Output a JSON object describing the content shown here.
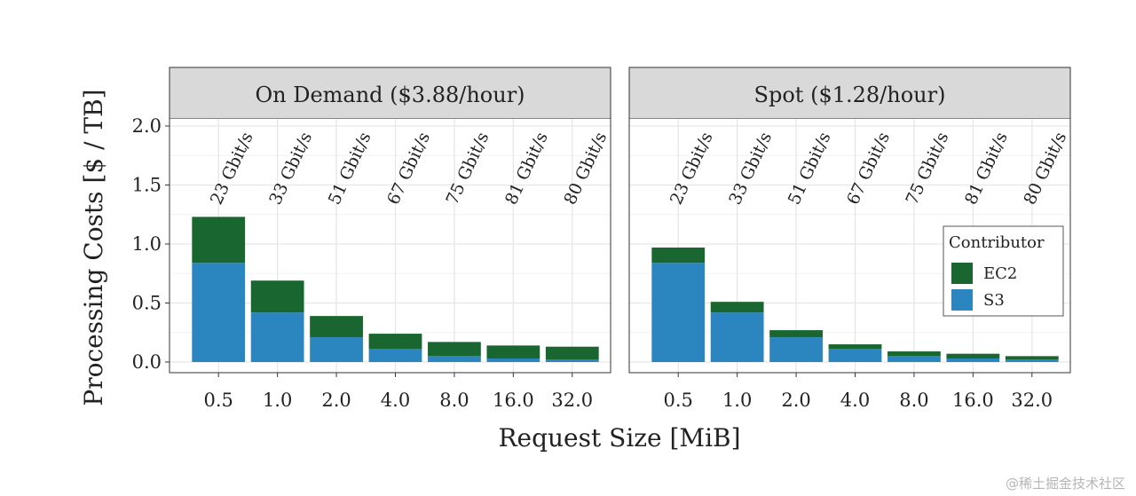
{
  "figure": {
    "xlabel": "Request Size [MiB]",
    "ylabel": "Processing Costs [$ / TB]"
  },
  "legend": {
    "title": "Contributor",
    "entries": [
      {
        "label": "EC2",
        "color": "#1a6630"
      },
      {
        "label": "S3",
        "color": "#2b86c0"
      }
    ]
  },
  "chart_data": {
    "type": "bar",
    "stacked": true,
    "categories": [
      "0.5",
      "1.0",
      "2.0",
      "4.0",
      "8.0",
      "16.0",
      "32.0"
    ],
    "ylim": [
      0,
      2.0
    ],
    "yticks": [
      "0.0",
      "0.5",
      "1.0",
      "1.5",
      "2.0"
    ],
    "grid": true,
    "legend_position": "right",
    "panels": [
      {
        "title": "On Demand ($3.88/hour)",
        "bandwidth_labels": [
          "23 Gbit/s",
          "33 Gbit/s",
          "51 Gbit/s",
          "67 Gbit/s",
          "75 Gbit/s",
          "81 Gbit/s",
          "80 Gbit/s"
        ],
        "series": [
          {
            "name": "S3",
            "values": [
              0.84,
              0.42,
              0.21,
              0.11,
              0.05,
              0.03,
              0.02
            ]
          },
          {
            "name": "EC2",
            "values": [
              0.39,
              0.27,
              0.18,
              0.13,
              0.12,
              0.11,
              0.11
            ]
          }
        ]
      },
      {
        "title": "Spot ($1.28/hour)",
        "bandwidth_labels": [
          "23 Gbit/s",
          "33 Gbit/s",
          "51 Gbit/s",
          "67 Gbit/s",
          "75 Gbit/s",
          "81 Gbit/s",
          "80 Gbit/s"
        ],
        "series": [
          {
            "name": "S3",
            "values": [
              0.84,
              0.42,
              0.21,
              0.11,
              0.05,
              0.03,
              0.02
            ]
          },
          {
            "name": "EC2",
            "values": [
              0.13,
              0.09,
              0.06,
              0.04,
              0.04,
              0.04,
              0.03
            ]
          }
        ]
      }
    ]
  },
  "watermark": "@稀土掘金技术社区"
}
